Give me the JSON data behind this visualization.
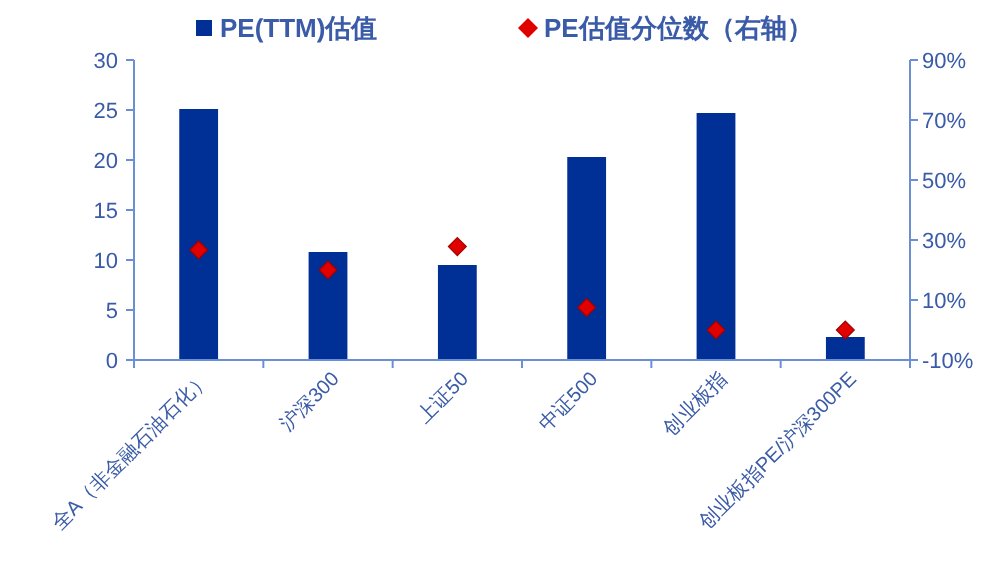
{
  "chart_data": {
    "type": "bar",
    "categories": [
      "全A（非金融石油石化）",
      "沪深300",
      "上证50",
      "中证500",
      "创业板指",
      "创业板指PE/沪深300PE"
    ],
    "series": [
      {
        "name": "PE(TTM)估值",
        "color": "#002f96",
        "values": [
          25.1,
          10.8,
          9.5,
          20.3,
          24.7,
          2.3
        ]
      },
      {
        "name": "PE估值分位数（右轴）",
        "type": "scatter",
        "axis": "y2",
        "marker": "diamond",
        "color": "#e00000",
        "values": [
          26.7,
          20,
          27.8,
          7.5,
          0,
          0
        ]
      }
    ],
    "ylim": [
      0,
      30
    ],
    "yticks": [
      0,
      5,
      10,
      15,
      20,
      25,
      30
    ],
    "y2lim": [
      -10,
      90
    ],
    "y2ticks": [
      {
        "value": -10,
        "label": "-10%"
      },
      {
        "value": 10,
        "label": "10%"
      },
      {
        "value": 30,
        "label": "30%"
      },
      {
        "value": 50,
        "label": "50%"
      },
      {
        "value": 70,
        "label": "70%"
      },
      {
        "value": 90,
        "label": "90%"
      }
    ],
    "grid": false,
    "legend": "top"
  }
}
